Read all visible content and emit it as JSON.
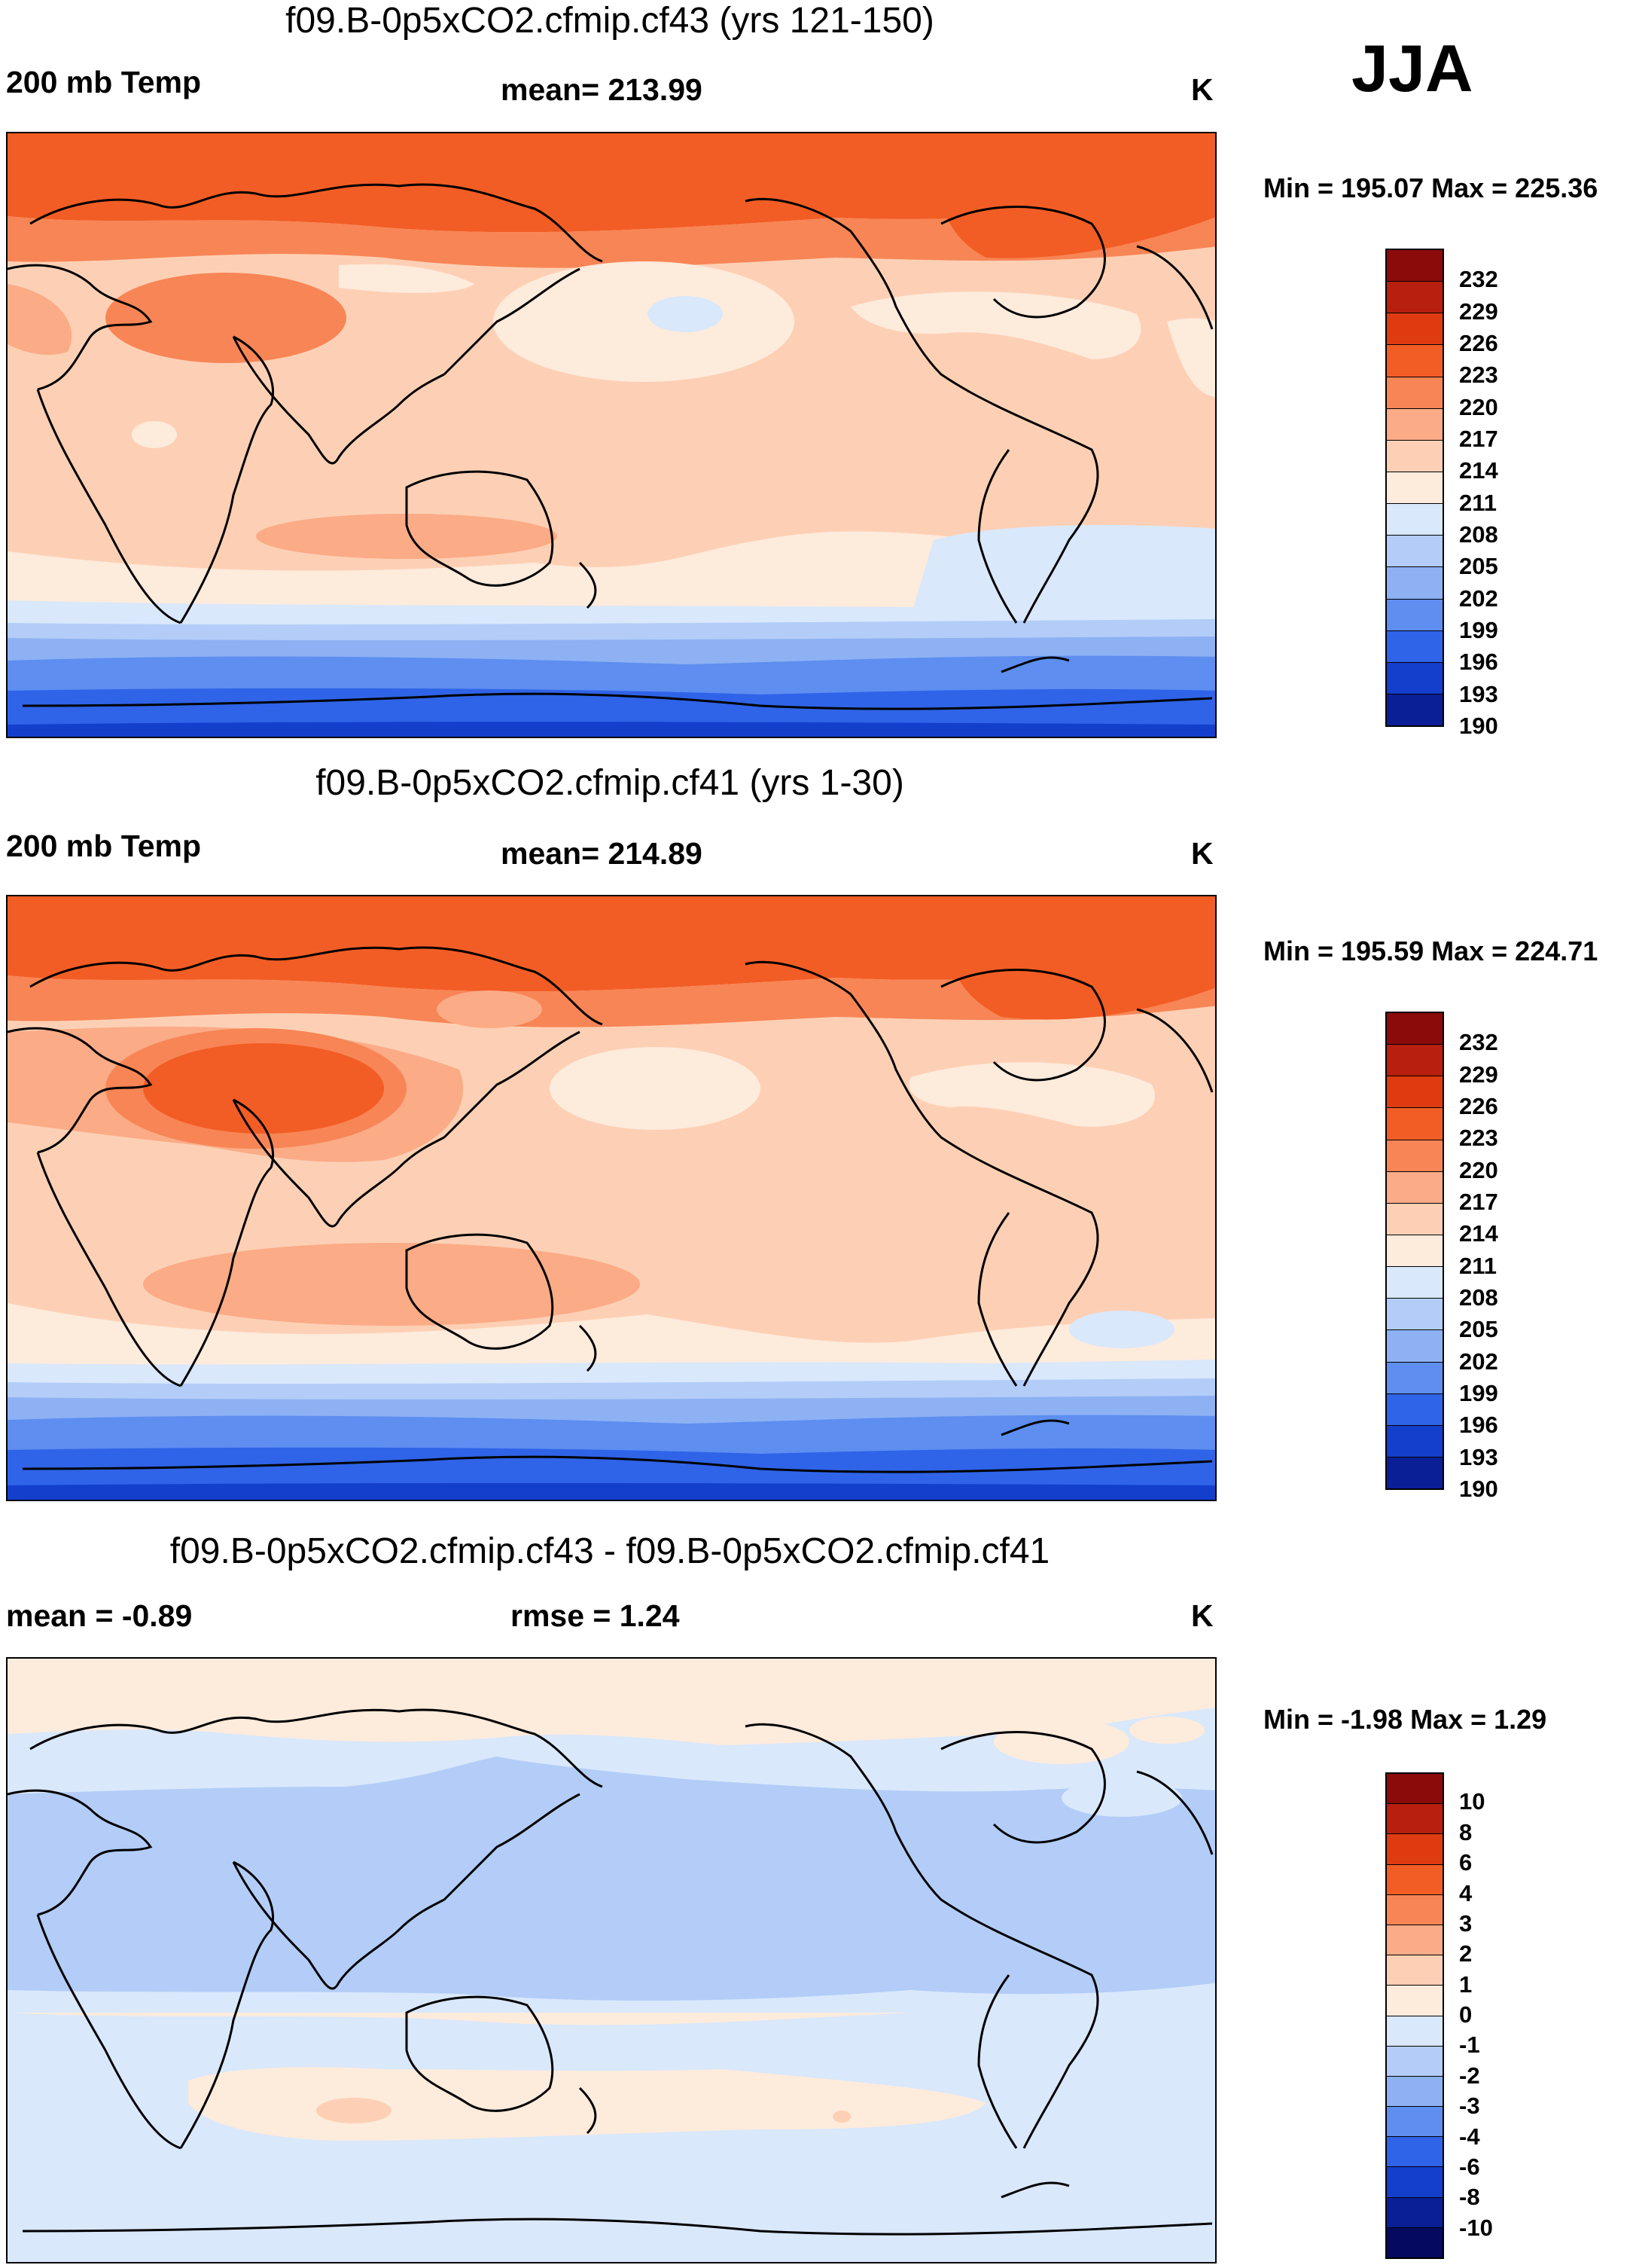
{
  "season": "JJA",
  "panels": [
    {
      "title": "f09.B-0p5xCO2.cfmip.cf43 (yrs 121-150)",
      "left_label": "200 mb Temp",
      "center_label": "mean= 213.99",
      "units": "K",
      "minmax": "Min = 195.07 Max = 225.36",
      "colorbar": {
        "labels": [
          "232",
          "229",
          "226",
          "223",
          "220",
          "217",
          "214",
          "211",
          "208",
          "205",
          "202",
          "199",
          "196",
          "193",
          "190"
        ],
        "colors": [
          "#8b0a0a",
          "#b81f0e",
          "#df3b10",
          "#f25d25",
          "#f88556",
          "#fbab86",
          "#fdd0b5",
          "#fdebdc",
          "#d9e8fb",
          "#b3cdf8",
          "#8db1f3",
          "#5d8ef0",
          "#2f63e8",
          "#143fcc",
          "#0a1e96"
        ]
      }
    },
    {
      "title": "f09.B-0p5xCO2.cfmip.cf41 (yrs 1-30)",
      "left_label": "200 mb Temp",
      "center_label": "mean= 214.89",
      "units": "K",
      "minmax": "Min = 195.59 Max = 224.71",
      "colorbar": {
        "labels": [
          "232",
          "229",
          "226",
          "223",
          "220",
          "217",
          "214",
          "211",
          "208",
          "205",
          "202",
          "199",
          "196",
          "193",
          "190"
        ],
        "colors": [
          "#8b0a0a",
          "#b81f0e",
          "#df3b10",
          "#f25d25",
          "#f88556",
          "#fbab86",
          "#fdd0b5",
          "#fdebdc",
          "#d9e8fb",
          "#b3cdf8",
          "#8db1f3",
          "#5d8ef0",
          "#2f63e8",
          "#143fcc",
          "#0a1e96"
        ]
      }
    },
    {
      "title": "f09.B-0p5xCO2.cfmip.cf43 - f09.B-0p5xCO2.cfmip.cf41",
      "left_label": "mean =  -0.89",
      "center_label": "rmse =   1.24",
      "units": "K",
      "minmax": "Min =  -1.98 Max =   1.29",
      "colorbar": {
        "labels": [
          "10",
          "8",
          "6",
          "4",
          "3",
          "2",
          "1",
          "0",
          "-1",
          "-2",
          "-3",
          "-4",
          "-6",
          "-8",
          "-10"
        ],
        "colors": [
          "#8b0a0a",
          "#b81f0e",
          "#df3b10",
          "#f25d25",
          "#f88556",
          "#fbab86",
          "#fdd0b5",
          "#fdebdc",
          "#d9e8fb",
          "#b3cdf8",
          "#8db1f3",
          "#5d8ef0",
          "#2f63e8",
          "#143fcc",
          "#0a1e96",
          "#050a60"
        ]
      }
    }
  ],
  "colors": {
    "orange_strong": "#f25d25",
    "orange_mid": "#f88556",
    "orange_light": "#fbab86",
    "peach": "#fdd0b5",
    "cream": "#fdebdc",
    "blue_pale": "#d9e8fb",
    "blue_light": "#b3cdf8",
    "blue_mid": "#8db1f3",
    "blue_strong": "#5d8ef0",
    "blue_deep": "#2f63e8",
    "blue_dark": "#143fcc"
  }
}
